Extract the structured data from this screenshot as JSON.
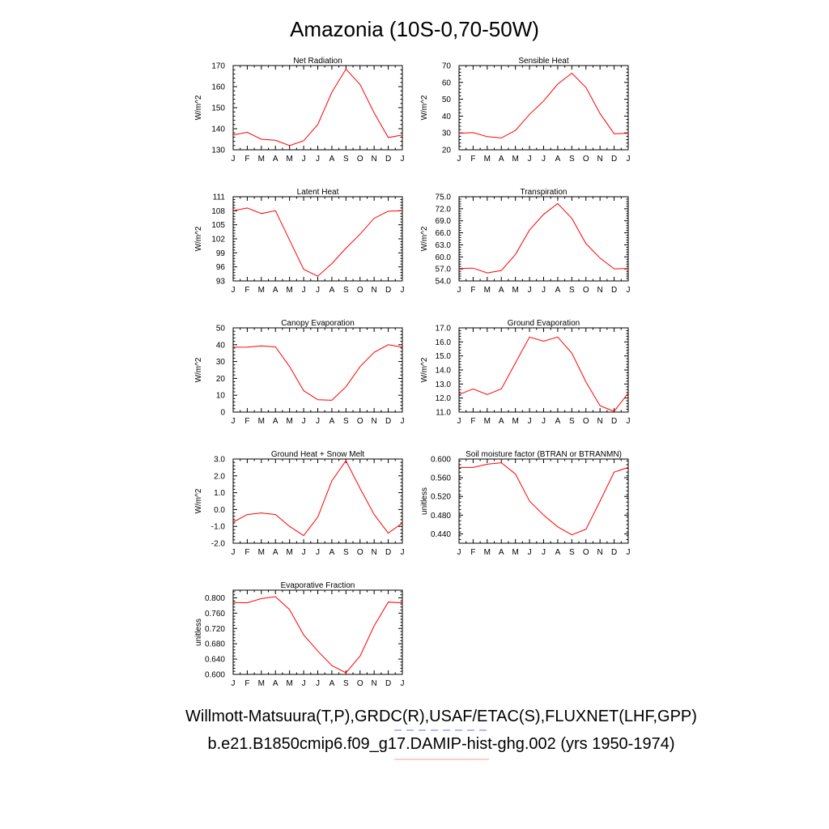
{
  "page_title": "Amazonia (10S-0,70-50W)",
  "footer": {
    "obs_line": "Willmott-Matsuura(T,P),GRDC(R),USAF/ETAC(S),FLUXNET(LHF,GPP)",
    "model_line": "b.e21.B1850cmip6.f09_g17.DAMIP-hist-ghg.002 (yrs 1950-1974)"
  },
  "colors": {
    "model_line": "#ff0000",
    "obs_dash": "#6b6bff",
    "axis": "#000000"
  },
  "chart_data": [
    {
      "type": "line",
      "title": "Net Radiation",
      "ylabel": "W/m^2",
      "categories": [
        "J",
        "F",
        "M",
        "A",
        "M",
        "J",
        "J",
        "A",
        "S",
        "O",
        "N",
        "D",
        "J"
      ],
      "values": [
        137,
        138.3,
        135,
        134.5,
        132,
        134.3,
        142,
        157.3,
        168.3,
        161,
        147.5,
        135.8,
        137
      ],
      "ylim": [
        130,
        170
      ],
      "yticks": [
        "130",
        "140",
        "150",
        "160",
        "170"
      ],
      "ytick_values": [
        130,
        140,
        150,
        160,
        170
      ]
    },
    {
      "type": "line",
      "title": "Sensible Heat",
      "ylabel": "W/m^2",
      "categories": [
        "J",
        "F",
        "M",
        "A",
        "M",
        "J",
        "J",
        "A",
        "S",
        "O",
        "N",
        "D",
        "J"
      ],
      "values": [
        29.8,
        30.2,
        27.8,
        27,
        31.5,
        41,
        49,
        59,
        65.5,
        57,
        41.5,
        29.5,
        29.8
      ],
      "ylim": [
        20,
        70
      ],
      "yticks": [
        "20",
        "30",
        "40",
        "50",
        "60",
        "70"
      ],
      "ytick_values": [
        20,
        30,
        40,
        50,
        60,
        70
      ]
    },
    {
      "type": "line",
      "title": "Latent Heat",
      "ylabel": "W/m^2",
      "categories": [
        "J",
        "F",
        "M",
        "A",
        "M",
        "J",
        "J",
        "A",
        "S",
        "O",
        "N",
        "D",
        "J"
      ],
      "values": [
        108,
        108.6,
        107.4,
        108,
        101.7,
        95.5,
        94,
        96.7,
        100,
        103,
        106.4,
        107.9,
        108
      ],
      "ylim": [
        93,
        111
      ],
      "yticks": [
        "93",
        "96",
        "99",
        "102",
        "105",
        "108",
        "111"
      ],
      "ytick_values": [
        93,
        96,
        99,
        102,
        105,
        108,
        111
      ]
    },
    {
      "type": "line",
      "title": "Transpiration",
      "ylabel": "W/m^2",
      "categories": [
        "J",
        "F",
        "M",
        "A",
        "M",
        "J",
        "J",
        "A",
        "S",
        "O",
        "N",
        "D",
        "J"
      ],
      "values": [
        57.1,
        57.2,
        56,
        56.6,
        60.6,
        66.7,
        70.6,
        73.3,
        69.6,
        63.3,
        59.7,
        57,
        57.1
      ],
      "ylim": [
        54,
        75
      ],
      "yticks": [
        "54.0",
        "57.0",
        "60.0",
        "63.0",
        "66.0",
        "69.0",
        "72.0",
        "75.0"
      ],
      "ytick_values": [
        54,
        57,
        60,
        63,
        66,
        69,
        72,
        75
      ]
    },
    {
      "type": "line",
      "title": "Canopy Evaporation",
      "ylabel": "W/m^2",
      "categories": [
        "J",
        "F",
        "M",
        "A",
        "M",
        "J",
        "J",
        "A",
        "S",
        "O",
        "N",
        "D",
        "J"
      ],
      "values": [
        38.5,
        38.6,
        39.3,
        38.7,
        27,
        12.7,
        7.3,
        7,
        15,
        27,
        35.5,
        40,
        38.5
      ],
      "ylim": [
        0,
        50
      ],
      "yticks": [
        "0",
        "10",
        "20",
        "30",
        "40",
        "50"
      ],
      "ytick_values": [
        0,
        10,
        20,
        30,
        40,
        50
      ]
    },
    {
      "type": "line",
      "title": "Ground Evaporation",
      "ylabel": "W/m^2",
      "categories": [
        "J",
        "F",
        "M",
        "A",
        "M",
        "J",
        "J",
        "A",
        "S",
        "O",
        "N",
        "D",
        "J"
      ],
      "values": [
        12.25,
        12.65,
        12.25,
        12.65,
        14.5,
        16.35,
        16.05,
        16.35,
        15.2,
        13.15,
        11.45,
        11.05,
        12.35
      ],
      "ylim": [
        11,
        17
      ],
      "yticks": [
        "11.0",
        "12.0",
        "13.0",
        "14.0",
        "15.0",
        "16.0",
        "17.0"
      ],
      "ytick_values": [
        11,
        12,
        13,
        14,
        15,
        16,
        17
      ]
    },
    {
      "type": "line",
      "title": "Ground Heat + Snow Melt",
      "ylabel": "W/m^2",
      "categories": [
        "J",
        "F",
        "M",
        "A",
        "M",
        "J",
        "J",
        "A",
        "S",
        "O",
        "N",
        "D",
        "J"
      ],
      "values": [
        -0.75,
        -0.3,
        -0.2,
        -0.3,
        -1.0,
        -1.55,
        -0.45,
        1.7,
        2.9,
        1.25,
        -0.3,
        -1.4,
        -0.8
      ],
      "ylim": [
        -2,
        3
      ],
      "yticks": [
        "-2.0",
        "-1.0",
        "0.0",
        "1.0",
        "2.0",
        "3.0"
      ],
      "ytick_values": [
        -2,
        -1,
        0,
        1,
        2,
        3
      ]
    },
    {
      "type": "line",
      "title": "Soil moisture factor (BTRAN or BTRANMN)",
      "ylabel": "unitless",
      "categories": [
        "J",
        "F",
        "M",
        "A",
        "M",
        "J",
        "J",
        "A",
        "S",
        "O",
        "N",
        "D",
        "J"
      ],
      "values": [
        0.582,
        0.582,
        0.589,
        0.592,
        0.568,
        0.51,
        0.48,
        0.455,
        0.438,
        0.45,
        0.51,
        0.572,
        0.582
      ],
      "ylim": [
        0.42,
        0.6
      ],
      "yticks": [
        "0.440",
        "0.480",
        "0.520",
        "0.560",
        "0.600"
      ],
      "ytick_values": [
        0.44,
        0.48,
        0.52,
        0.56,
        0.6
      ]
    },
    {
      "type": "line",
      "title": "Evaporative Fraction",
      "ylabel": "unitless",
      "categories": [
        "J",
        "F",
        "M",
        "A",
        "M",
        "J",
        "J",
        "A",
        "S",
        "O",
        "N",
        "D",
        "J"
      ],
      "values": [
        0.788,
        0.787,
        0.798,
        0.803,
        0.769,
        0.703,
        0.661,
        0.623,
        0.604,
        0.648,
        0.727,
        0.789,
        0.787
      ],
      "ylim": [
        0.6,
        0.82
      ],
      "yticks": [
        "0.600",
        "0.640",
        "0.680",
        "0.720",
        "0.760",
        "0.800"
      ],
      "ytick_values": [
        0.6,
        0.64,
        0.68,
        0.72,
        0.76,
        0.8
      ]
    }
  ]
}
